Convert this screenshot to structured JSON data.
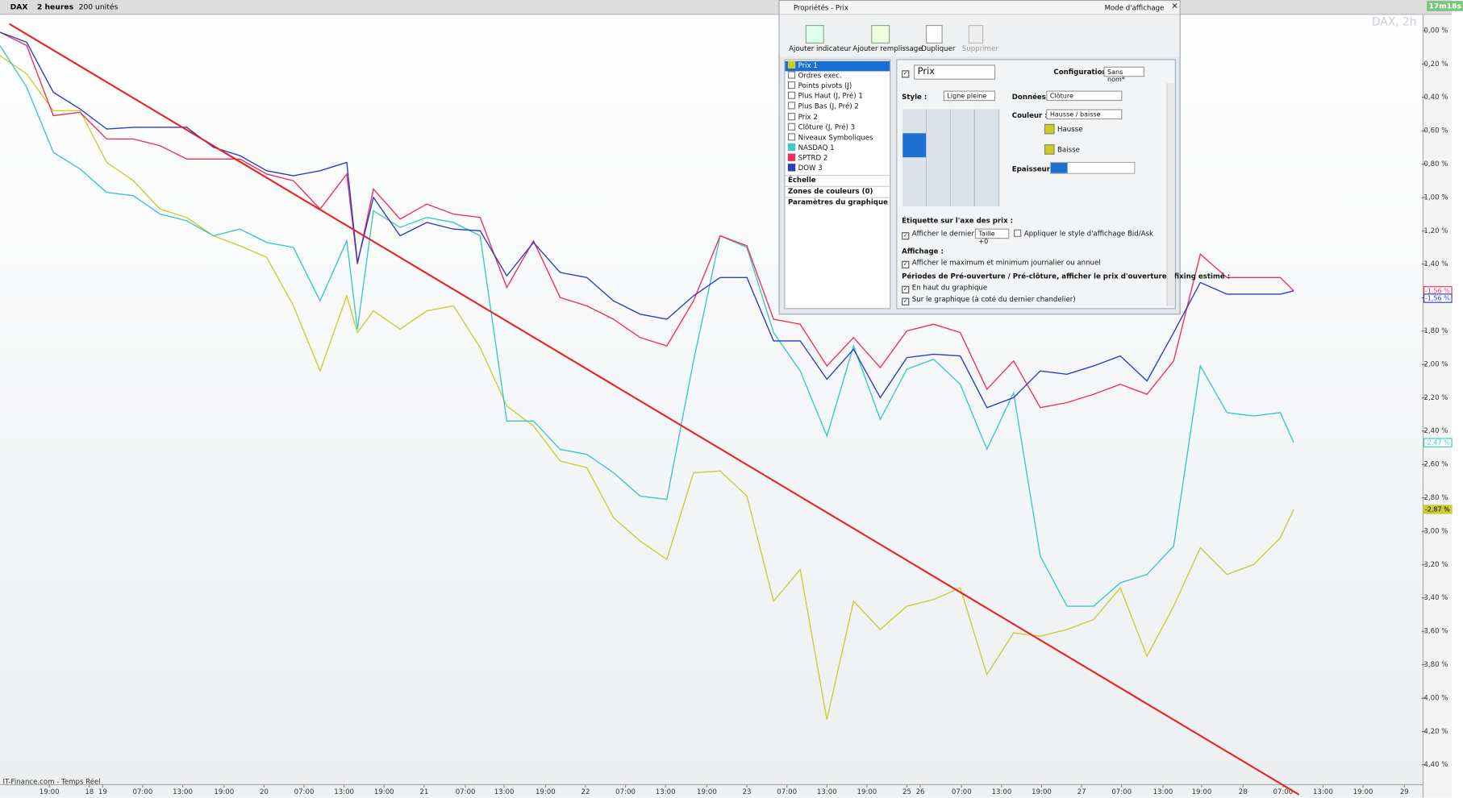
{
  "toolbar": {
    "symbol": "DAX",
    "period": "2 heures",
    "units": "200 unités",
    "timer": "17m18s",
    "watermark": "DAX, 2h",
    "footer": "IT-Finance.com - Temps Réel"
  },
  "dialog": {
    "title": "Propriétés - Prix",
    "mode": "Mode d'affichage",
    "buttons": [
      "Ajouter indicateur",
      "Ajouter remplissage",
      "Dupliquer",
      "Supprimer"
    ],
    "list": [
      {
        "label": "Prix 1",
        "color": "#cccc22"
      },
      {
        "label": "Ordres exec."
      },
      {
        "label": "Points pivots (J)"
      },
      {
        "label": "Plus Haut (J, Pré) 1"
      },
      {
        "label": "Plus Bas (J, Pré) 2"
      },
      {
        "label": "Prix 2"
      },
      {
        "label": "Clôture (J, Pré) 3"
      },
      {
        "label": "Niveaux Symboliques"
      },
      {
        "label": "NASDAQ 1",
        "color": "#3cc8c8"
      },
      {
        "label": "SPTRD 2",
        "color": "#f0305a"
      },
      {
        "label": "DOW 3",
        "color": "#2a3cc8"
      }
    ],
    "sections": [
      "Échelle",
      "Zones de couleurs (0)",
      "Paramètres du graphique"
    ],
    "panel": {
      "name": "Prix",
      "config_label": "Configuration :",
      "config": "Sans nom*",
      "style_label": "Style :",
      "style": "Ligne pleine",
      "data_label": "Données :",
      "data": "Clôture",
      "color_label": "Couleur :",
      "color": "Hausse / baisse",
      "up": "Hausse",
      "down": "Baisse",
      "width_label": "Epaisseur :",
      "axis_title": "Étiquette sur l'axe des prix :",
      "last_price": "Afficher le dernier prix",
      "size": "Taille +0",
      "bidask": "Appliquer le style d'affichage Bid/Ask",
      "display_title": "Affichage :",
      "minmax": "Afficher le maximum et minimum journalier ou annuel",
      "periods_title": "Périodes de Pré-ouverture / Pré-clôture, afficher le prix d'ouverture / fixing estimé :",
      "top": "En haut du graphique",
      "on_chart": "Sur le graphique (à coté du dernier chandelier)"
    }
  },
  "chart_data": {
    "type": "line",
    "x": [
      0,
      2,
      4,
      6,
      8,
      10,
      12,
      14,
      16,
      18,
      20,
      22,
      24,
      26,
      26.8,
      28,
      30,
      32,
      34,
      36,
      38,
      40,
      42,
      44,
      46,
      48,
      50,
      52,
      54,
      56,
      58,
      60,
      62,
      64,
      66,
      68,
      70,
      72,
      74,
      76,
      78,
      80,
      82,
      84,
      86,
      88,
      90,
      92,
      94,
      96,
      97
    ],
    "series": [
      {
        "color": "#cccc33",
        "values": [
          -0.15,
          -0.26,
          -0.48,
          -0.48,
          -0.79,
          -0.9,
          -1.07,
          -1.12,
          -1.23,
          -1.29,
          -1.36,
          -1.65,
          -2.04,
          -1.59,
          -1.81,
          -1.68,
          -1.79,
          -1.68,
          -1.65,
          -1.9,
          -2.25,
          -2.37,
          -2.58,
          -2.62,
          -2.92,
          -3.06,
          -3.17,
          -2.65,
          -2.64,
          -2.79,
          -3.42,
          -3.23,
          -4.13,
          -3.42,
          -3.59,
          -3.45,
          -3.41,
          -3.34,
          -3.86,
          -3.61,
          -3.63,
          -3.59,
          -3.53,
          -3.34,
          -3.75,
          -3.45,
          -3.1,
          -3.26,
          -3.2,
          -3.04,
          -2.87
        ],
        "value_labels": [
          null,
          null,
          null,
          null,
          null,
          null,
          null,
          null,
          null,
          null,
          null,
          null,
          null,
          null,
          null,
          null,
          null,
          null,
          null,
          null,
          null,
          null,
          null,
          null,
          null,
          null,
          null,
          null,
          null,
          null,
          null,
          null,
          null,
          null,
          null,
          null,
          null,
          null,
          null,
          null,
          null,
          null,
          null,
          null,
          null,
          null,
          null,
          null,
          null,
          null,
          "-2,87 %"
        ]
      },
      {
        "color": "#3cc8c8",
        "values": [
          -0.09,
          -0.34,
          -0.73,
          -0.83,
          -0.97,
          -0.99,
          -1.1,
          -1.14,
          -1.23,
          -1.19,
          -1.27,
          -1.3,
          -1.62,
          -1.26,
          -1.79,
          -1.08,
          -1.18,
          -1.12,
          -1.15,
          -1.23,
          -2.34,
          -2.34,
          -2.51,
          -2.54,
          -2.65,
          -2.79,
          -2.81,
          -1.98,
          -1.23,
          -1.3,
          -1.81,
          -2.04,
          -2.43,
          -1.89,
          -2.33,
          -2.03,
          -1.97,
          -2.12,
          -2.51,
          -2.17,
          -3.15,
          -3.45,
          -3.45,
          -3.31,
          -3.26,
          -3.09,
          -2.01,
          -2.29,
          -2.31,
          -2.29,
          -2.47
        ],
        "value_labels": [
          null,
          null,
          null,
          null,
          null,
          null,
          null,
          null,
          null,
          null,
          null,
          null,
          null,
          null,
          null,
          null,
          null,
          null,
          null,
          null,
          null,
          null,
          null,
          null,
          null,
          null,
          null,
          null,
          null,
          null,
          null,
          null,
          null,
          null,
          null,
          null,
          null,
          null,
          null,
          null,
          null,
          null,
          null,
          null,
          null,
          null,
          null,
          null,
          null,
          null,
          "-2,47 %"
        ]
      },
      {
        "color": "#f0305a",
        "values": [
          -0.01,
          -0.09,
          -0.51,
          -0.49,
          -0.65,
          -0.65,
          -0.69,
          -0.77,
          -0.77,
          -0.77,
          -0.86,
          -0.9,
          -1.07,
          -0.86,
          -1.4,
          -0.95,
          -1.13,
          -1.04,
          -1.1,
          -1.12,
          -1.54,
          -1.26,
          -1.6,
          -1.65,
          -1.73,
          -1.84,
          -1.89,
          -1.62,
          -1.23,
          -1.29,
          -1.73,
          -1.76,
          -2.01,
          -1.84,
          -2.02,
          -1.8,
          -1.76,
          -1.81,
          -2.15,
          -1.98,
          -2.26,
          -2.23,
          -2.18,
          -2.12,
          -2.18,
          -1.98,
          -1.34,
          -1.48,
          -1.48,
          -1.48,
          -1.56
        ],
        "value_labels": [
          null,
          null,
          null,
          null,
          null,
          null,
          null,
          null,
          null,
          null,
          null,
          null,
          null,
          null,
          null,
          null,
          null,
          null,
          null,
          null,
          null,
          null,
          null,
          null,
          null,
          null,
          null,
          null,
          null,
          null,
          null,
          null,
          null,
          null,
          null,
          null,
          null,
          null,
          null,
          null,
          null,
          null,
          null,
          null,
          null,
          null,
          null,
          null,
          null,
          null,
          "-1,56 %"
        ]
      },
      {
        "color": "#2a3cc8",
        "values": [
          -0.01,
          -0.07,
          -0.37,
          -0.47,
          -0.59,
          -0.58,
          -0.58,
          -0.58,
          -0.7,
          -0.75,
          -0.84,
          -0.87,
          -0.84,
          -0.79,
          -1.39,
          -1.0,
          -1.23,
          -1.15,
          -1.19,
          -1.2,
          -1.47,
          -1.27,
          -1.45,
          -1.48,
          -1.62,
          -1.7,
          -1.73,
          -1.59,
          -1.48,
          -1.48,
          -1.86,
          -1.86,
          -2.09,
          -1.91,
          -2.2,
          -1.96,
          -1.94,
          -1.95,
          -2.26,
          -2.2,
          -2.04,
          -2.06,
          -2.01,
          -1.95,
          -2.1,
          -1.81,
          -1.51,
          -1.58,
          -1.58,
          -1.58,
          -1.56
        ],
        "value_labels": [
          null,
          null,
          null,
          null,
          null,
          null,
          null,
          null,
          null,
          null,
          null,
          null,
          null,
          null,
          null,
          null,
          null,
          null,
          null,
          null,
          null,
          null,
          null,
          null,
          null,
          null,
          null,
          null,
          null,
          null,
          null,
          null,
          null,
          null,
          null,
          null,
          null,
          null,
          null,
          null,
          null,
          null,
          null,
          null,
          null,
          null,
          null,
          null,
          null,
          null,
          "-1,56 %"
        ]
      }
    ],
    "trendline": {
      "color": "#e82020",
      "x": [
        0.7,
        97.4
      ],
      "y": [
        0.04,
        -4.58
      ]
    },
    "xlim": [
      0,
      106.7
    ],
    "ylim": [
      -4.52,
      0.1
    ],
    "grid": false,
    "xticks": [
      {
        "value": 3.7,
        "label": "19:00"
      },
      {
        "value": 6.7,
        "label": "18"
      },
      {
        "value": 7.7,
        "label": "19"
      },
      {
        "value": 10.7,
        "label": "07:00"
      },
      {
        "value": 13.7,
        "label": "13:00"
      },
      {
        "value": 16.8,
        "label": "19:00"
      },
      {
        "value": 19.8,
        "label": "20"
      },
      {
        "value": 22.8,
        "label": "07:00"
      },
      {
        "value": 25.8,
        "label": "13:00"
      },
      {
        "value": 28.8,
        "label": "19:00"
      },
      {
        "value": 31.8,
        "label": "21"
      },
      {
        "value": 34.9,
        "label": "07:00"
      },
      {
        "value": 37.8,
        "label": "13:00"
      },
      {
        "value": 40.9,
        "label": "19:00"
      },
      {
        "value": 43.9,
        "label": "22"
      },
      {
        "value": 46.9,
        "label": "07:00"
      },
      {
        "value": 49.9,
        "label": "13:00"
      },
      {
        "value": 53,
        "label": "19:00"
      },
      {
        "value": 56,
        "label": "23"
      },
      {
        "value": 59,
        "label": "07:00"
      },
      {
        "value": 62,
        "label": "13:00"
      },
      {
        "value": 65,
        "label": "19:00"
      },
      {
        "value": 68,
        "label": "25"
      },
      {
        "value": 69,
        "label": "26"
      },
      {
        "value": 72.1,
        "label": "07:00"
      },
      {
        "value": 75.1,
        "label": "13:00"
      },
      {
        "value": 78.1,
        "label": "19:00"
      },
      {
        "value": 81.1,
        "label": "27"
      },
      {
        "value": 84.1,
        "label": "07:00"
      },
      {
        "value": 87.2,
        "label": "13:00"
      },
      {
        "value": 90.1,
        "label": "19:00"
      },
      {
        "value": 93.2,
        "label": "28"
      },
      {
        "value": 96.2,
        "label": "07:00"
      },
      {
        "value": 99.2,
        "label": "13:00"
      },
      {
        "value": 102.2,
        "label": "19:00"
      },
      {
        "value": 105.3,
        "label": "29"
      }
    ],
    "yticks": [
      {
        "value": 0,
        "label": "0,00 %"
      },
      {
        "value": -0.2,
        "label": "-0,20 %"
      },
      {
        "value": -0.4,
        "label": "-0,40 %"
      },
      {
        "value": -0.6,
        "label": "-0,60 %"
      },
      {
        "value": -0.8,
        "label": "-0,80 %"
      },
      {
        "value": -1,
        "label": "-1,00 %"
      },
      {
        "value": -1.2,
        "label": "-1,20 %"
      },
      {
        "value": -1.4,
        "label": "-1,40 %"
      },
      {
        "value": -1.6,
        "label": "-1,60 %"
      },
      {
        "value": -1.8,
        "label": "-1,80 %"
      },
      {
        "value": -2,
        "label": "-2,00 %"
      },
      {
        "value": -2.2,
        "label": "-2,20 %"
      },
      {
        "value": -2.4,
        "label": "-2,40 %"
      },
      {
        "value": -2.6,
        "label": "-2,60 %"
      },
      {
        "value": -2.8,
        "label": "-2,80 %"
      },
      {
        "value": -3,
        "label": "-3,00 %"
      },
      {
        "value": -3.2,
        "label": "-3,20 %"
      },
      {
        "value": -3.4,
        "label": "-3,40 %"
      },
      {
        "value": -3.6,
        "label": "-3,60 %"
      },
      {
        "value": -3.8,
        "label": "-3,80 %"
      },
      {
        "value": -4,
        "label": "-4,00 %"
      },
      {
        "value": -4.2,
        "label": "-4,20 %"
      },
      {
        "value": -4.4,
        "label": "-4,40 %"
      }
    ]
  }
}
